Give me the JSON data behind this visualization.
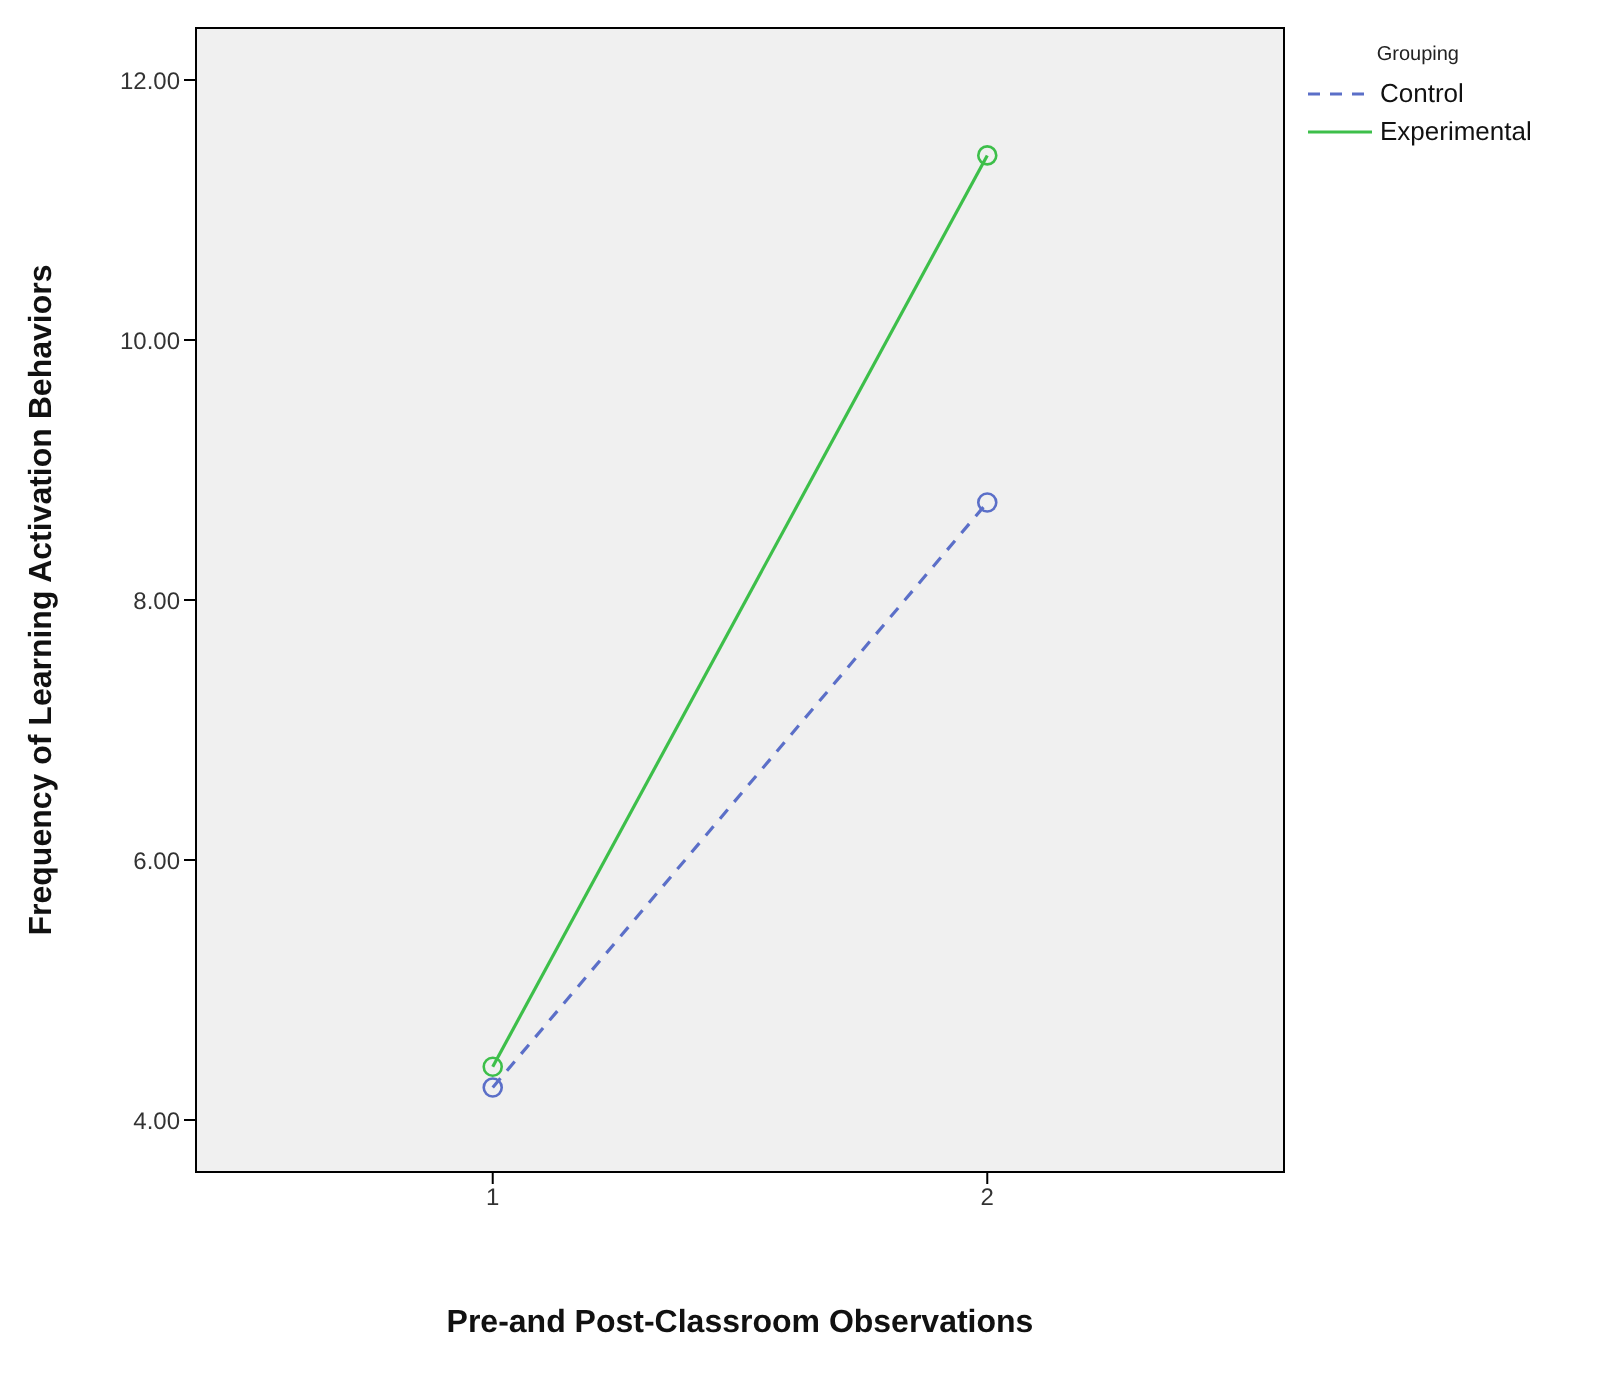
{
  "chart_data": {
    "type": "line",
    "xlabel": "Pre-and Post-Classroom Observations",
    "ylabel": "Frequency of Learning Activation Behaviors",
    "legend_title": "Grouping",
    "x": [
      1,
      2
    ],
    "series": [
      {
        "name": "Control",
        "color": "#5b6fc8",
        "values": [
          4.25,
          8.75
        ],
        "line_style": "dashed"
      },
      {
        "name": "Experimental",
        "color": "#3dbf4a",
        "values": [
          4.41,
          11.42
        ],
        "line_style": "solid"
      }
    ],
    "xlim": [
      0.4,
      2.6
    ],
    "xticks": [
      1,
      2
    ],
    "ylim": [
      3.6,
      12.4
    ],
    "yticks": [
      {
        "value": 4,
        "label": "4.00"
      },
      {
        "value": 6,
        "label": "6.00"
      },
      {
        "value": 8,
        "label": "8.00"
      },
      {
        "value": 10,
        "label": "10.00"
      },
      {
        "value": 12,
        "label": "12.00"
      }
    ],
    "marker": "circle",
    "legend": "top right"
  }
}
